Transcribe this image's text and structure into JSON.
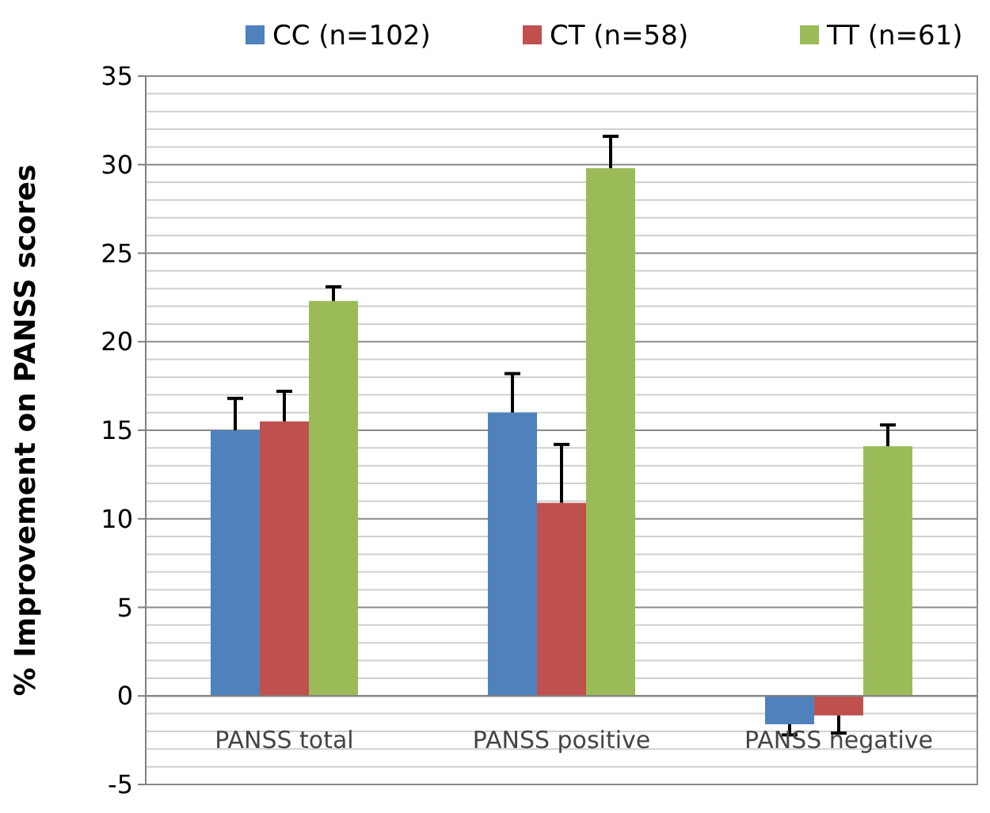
{
  "chart_data": {
    "type": "bar",
    "ylabel": "% Improvement on PANSS scores",
    "categories": [
      "PANSS total",
      "PANSS positive",
      "PANSS negative"
    ],
    "series": [
      {
        "name": "CC (n=102)",
        "color": "#4f81bd",
        "values": [
          15,
          16,
          -1.6
        ],
        "errors": [
          [
            15,
            16.8
          ],
          [
            16,
            18.2
          ],
          [
            -2.2,
            -1.6
          ]
        ]
      },
      {
        "name": "CT (n=58)",
        "color": "#c0504d",
        "values": [
          15.5,
          10.9,
          -1.1
        ],
        "errors": [
          [
            15.5,
            17.2
          ],
          [
            10.9,
            14.2
          ],
          [
            -2.1,
            -1.1
          ]
        ]
      },
      {
        "name": "TT (n=61)",
        "color": "#9bbb59",
        "values": [
          22.3,
          29.8,
          14.1
        ],
        "errors": [
          [
            22.3,
            23.1
          ],
          [
            29.8,
            31.6
          ],
          [
            14.1,
            15.3
          ]
        ]
      }
    ],
    "ylim": [
      -5,
      35
    ],
    "yticks": [
      -5,
      {
        "value": -4,
        "label": null
      },
      {
        "value": -3,
        "label": null
      },
      {
        "value": -2,
        "label": null
      },
      {
        "value": -1,
        "label": null
      },
      0,
      {
        "value": 1,
        "label": null
      },
      {
        "value": 2,
        "label": null
      },
      {
        "value": 3,
        "label": null
      },
      {
        "value": 4,
        "label": null
      },
      5,
      {
        "value": 6,
        "label": null
      },
      {
        "value": 7,
        "label": null
      },
      {
        "value": 8,
        "label": null
      },
      {
        "value": 9,
        "label": null
      },
      10,
      {
        "value": 11,
        "label": null
      },
      {
        "value": 12,
        "label": null
      },
      {
        "value": 13,
        "label": null
      },
      {
        "value": 14,
        "label": null
      },
      15,
      {
        "value": 16,
        "label": null
      },
      {
        "value": 17,
        "label": null
      },
      {
        "value": 18,
        "label": null
      },
      {
        "value": 19,
        "label": null
      },
      20,
      {
        "value": 21,
        "label": null
      },
      {
        "value": 22,
        "label": null
      },
      {
        "value": 23,
        "label": null
      },
      {
        "value": 24,
        "label": null
      },
      25,
      {
        "value": 26,
        "label": null
      },
      {
        "value": 27,
        "label": null
      },
      {
        "value": 28,
        "label": null
      },
      {
        "value": 29,
        "label": null
      },
      30,
      {
        "value": 31,
        "label": null
      },
      {
        "value": 32,
        "label": null
      },
      {
        "value": 33,
        "label": null
      },
      {
        "value": 34,
        "label": null
      },
      35
    ],
    "grid": true,
    "legend": "top"
  }
}
